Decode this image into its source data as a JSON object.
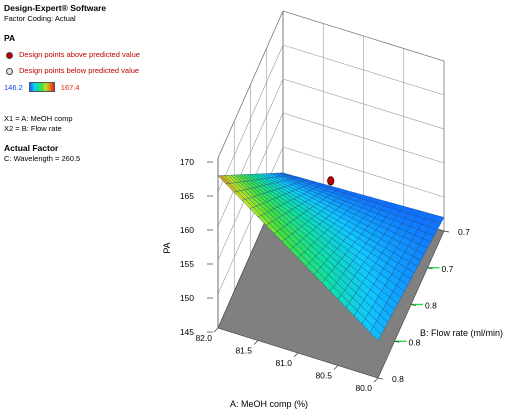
{
  "legend": {
    "software": "Design-Expert® Software",
    "factor_coding": "Factor Coding: Actual",
    "response": "PA",
    "points_above": "Design points above predicted value",
    "points_below": "Design points below predicted value",
    "range_min": "146.2",
    "range_max": "167.4",
    "x1": "X1 = A: MeOH comp",
    "x2": "X2 = B: Flow rate",
    "actual_factor_title": "Actual Factor",
    "actual_factor": "C: Wavelength = 260.5",
    "colors": {
      "above": "#c00000",
      "below": "#f0e0e0",
      "min_text": "#1040e0",
      "max_text": "#e02010"
    }
  },
  "chart_data": {
    "type": "surface3d",
    "zlabel": "PA",
    "xlabel": "A: MeOH comp (%)",
    "ylabel": "B: Flow rate (ml/min)",
    "x_ticks": [
      "82.0",
      "81.5",
      "81.0",
      "80.5",
      "80.0"
    ],
    "y_ticks": [
      "0.8",
      "0.8",
      "0.8",
      "0.7",
      "0.7"
    ],
    "z_ticks": [
      "145",
      "150",
      "155",
      "160",
      "165",
      "170"
    ],
    "zlim": [
      145,
      170
    ],
    "surface": {
      "x_range": [
        80.0,
        82.0
      ],
      "y_range": [
        0.66,
        0.84
      ],
      "corners": {
        "x80_ylow": 150.5,
        "x80_yhigh": 147.0,
        "x82_yhigh": 146.2,
        "x82_ylow": 167.4
      },
      "color_min": 146.2,
      "color_max": 167.4
    },
    "design_points": [
      {
        "x": 81.0,
        "y": 0.75,
        "z": 159.5,
        "kind": "above"
      }
    ]
  }
}
